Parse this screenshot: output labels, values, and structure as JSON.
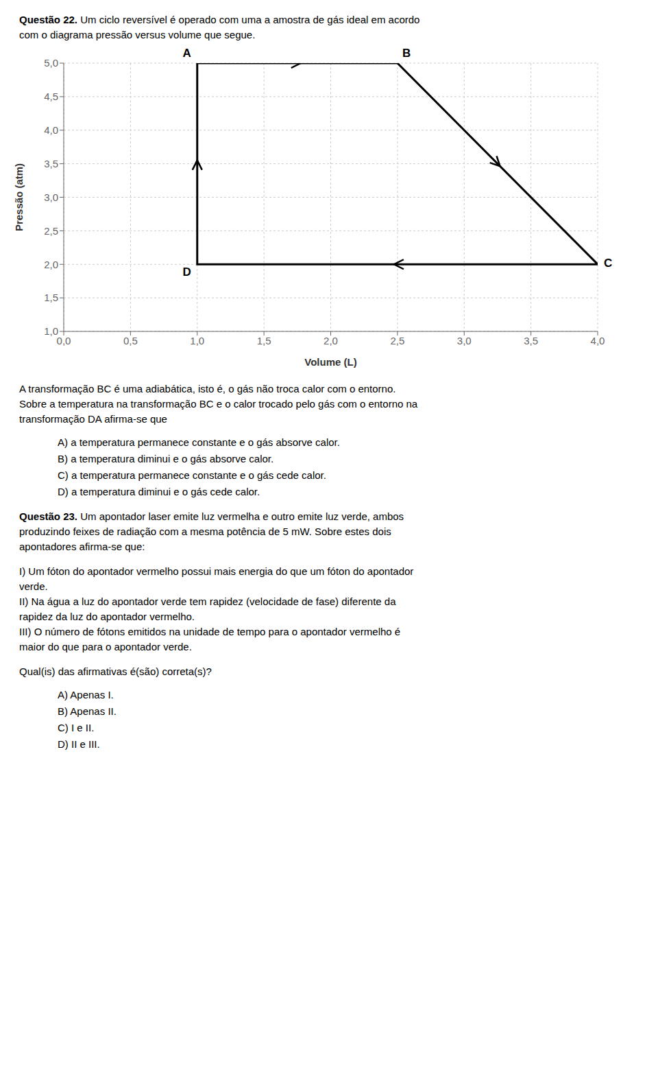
{
  "chart_data": {
    "type": "line",
    "xlabel": "Volume (L)",
    "ylabel": "Pressão (atm)",
    "x": [
      1.0,
      2.5,
      4.0,
      1.0,
      1.0
    ],
    "values": [
      5.0,
      5.0,
      2.0,
      2.0,
      5.0
    ],
    "color": "#000000",
    "xlim": [
      0.0,
      4.0
    ],
    "ylim": [
      1.0,
      5.0
    ],
    "xticks": [
      {
        "value": 0.0,
        "label": "0,0"
      },
      {
        "value": 0.5,
        "label": "0,5"
      },
      {
        "value": 1.0,
        "label": "1,0"
      },
      {
        "value": 1.5,
        "label": "1,5"
      },
      {
        "value": 2.0,
        "label": "2,0"
      },
      {
        "value": 2.5,
        "label": "2,5"
      },
      {
        "value": 3.0,
        "label": "3,0"
      },
      {
        "value": 3.5,
        "label": "3,5"
      },
      {
        "value": 4.0,
        "label": "4,0"
      }
    ],
    "yticks": [
      {
        "value": 1.0,
        "label": "1,0"
      },
      {
        "value": 1.5,
        "label": "1,5"
      },
      {
        "value": 2.0,
        "label": "2,0"
      },
      {
        "value": 2.5,
        "label": "2,5"
      },
      {
        "value": 3.0,
        "label": "3,0"
      },
      {
        "value": 3.5,
        "label": "3,5"
      },
      {
        "value": 4.0,
        "label": "4,0"
      },
      {
        "value": 4.5,
        "label": "4,5"
      },
      {
        "value": 5.0,
        "label": "5,0"
      }
    ],
    "grid": true,
    "annotations": [
      {
        "text": "A",
        "x": 1.0,
        "y": 5.0
      },
      {
        "text": "B",
        "x": 2.5,
        "y": 5.0
      },
      {
        "text": "C",
        "x": 4.0,
        "y": 2.0
      },
      {
        "text": "D",
        "x": 1.0,
        "y": 2.0
      }
    ],
    "text_above": [
      {
        "bold": "Questão 22.",
        "text": " Um ciclo reversível é operado com uma a amostra de gás ideal em acordo"
      },
      "com o diagrama pressão versus volume que segue."
    ],
    "text_below": [
      {
        "lines": [
          "A transformação BC é uma adiabática, isto é, o gás não troca calor com o entorno.",
          "Sobre a temperatura na transformação BC e o calor trocado pelo gás com o entorno na",
          "transformação DA afirma-se que"
        ]
      },
      {
        "options": [
          "A) a temperatura permanece constante e o gás absorve calor.",
          "B) a temperatura diminui e o gás absorve calor.",
          "C) a temperatura permanece constante e o gás cede calor.",
          "D) a temperatura diminui e o gás cede calor."
        ]
      },
      {
        "lines": [
          {
            "bold": "Questão 23.",
            "text": " Um apontador laser emite luz vermelha e outro emite luz verde, ambos"
          },
          "produzindo feixes de radiação com a mesma potência de 5 mW. Sobre estes dois",
          "apontadores afirma-se que:"
        ]
      },
      {
        "lines": [
          "I) Um fóton do apontador vermelho possui mais energia do que um fóton do apontador",
          "verde.",
          "II) Na água a luz do apontador verde tem rapidez (velocidade de fase) diferente da",
          "rapidez da luz do apontador vermelho.",
          "III) O número de fótons emitidos na unidade de tempo para o apontador vermelho é",
          "maior do que para o apontador verde."
        ]
      },
      {
        "lines": [
          "Qual(is) das afirmativas é(são) correta(s)?"
        ]
      },
      {
        "options": [
          "A) Apenas I.",
          "B) Apenas II.",
          "C) I e II.",
          "D) II e III."
        ]
      }
    ]
  }
}
